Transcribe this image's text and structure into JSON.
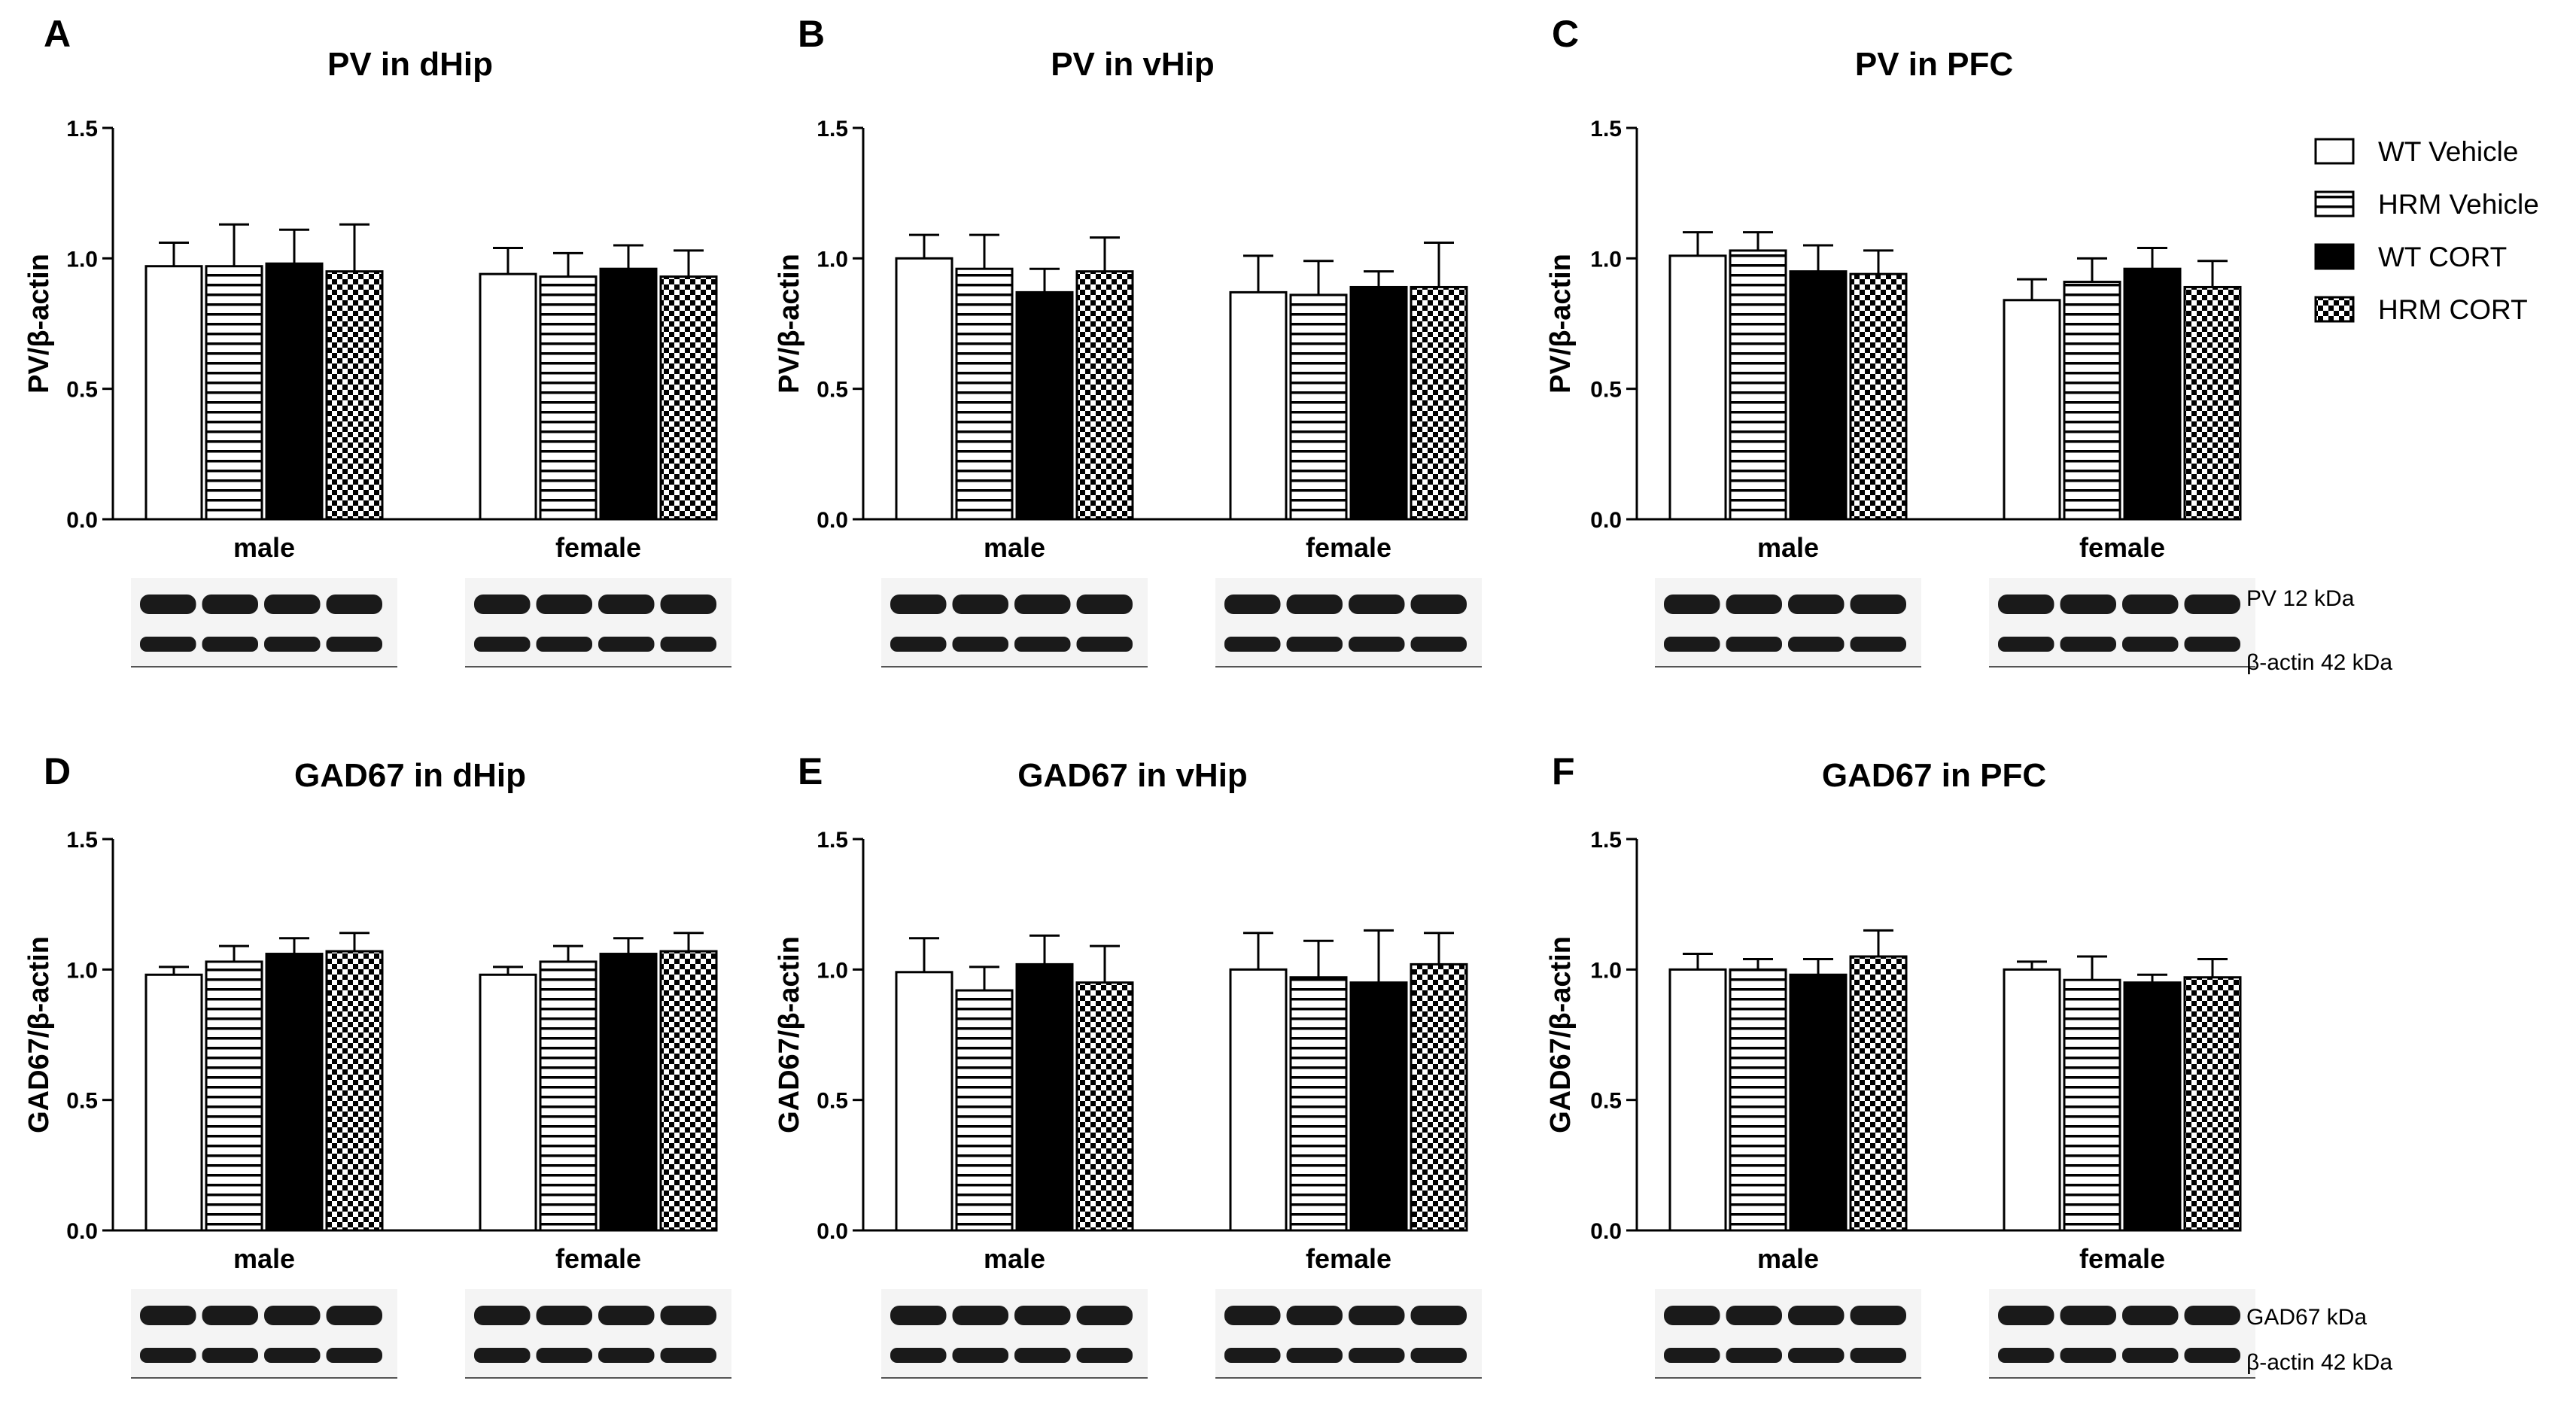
{
  "legend": [
    {
      "label": "WT Vehicle",
      "pattern": "white"
    },
    {
      "label": "HRM Vehicle",
      "pattern": "hstripe"
    },
    {
      "label": "WT CORT",
      "pattern": "black"
    },
    {
      "label": "HRM CORT",
      "pattern": "checker"
    }
  ],
  "blot_labels_top": [
    "PV 12 kDa",
    "β-actin 42 kDa"
  ],
  "blot_labels_bottom": [
    "GAD67 kDa",
    "β-actin 42 kDa"
  ],
  "colors": {
    "bar_fill_dark": "#000000",
    "bar_fill_light": "#ffffff",
    "axis": "#000000",
    "blot_band": "#1a1a1a"
  },
  "chart_data": [
    {
      "panel": "A",
      "type": "bar",
      "title": "PV in dHip",
      "ylabel": "PV/β-actin",
      "ylim": [
        0,
        1.5
      ],
      "yticks": [
        "0.0",
        "0.5",
        "1.0",
        "1.5"
      ],
      "categories": [
        "male",
        "female"
      ],
      "series": [
        {
          "name": "WT Vehicle",
          "values": [
            0.97,
            0.94
          ],
          "errors": [
            0.09,
            0.1
          ]
        },
        {
          "name": "HRM Vehicle",
          "values": [
            0.97,
            0.93
          ],
          "errors": [
            0.16,
            0.09
          ]
        },
        {
          "name": "WT CORT",
          "values": [
            0.98,
            0.96
          ],
          "errors": [
            0.13,
            0.09
          ]
        },
        {
          "name": "HRM CORT",
          "values": [
            0.95,
            0.93
          ],
          "errors": [
            0.18,
            0.1
          ]
        }
      ]
    },
    {
      "panel": "B",
      "type": "bar",
      "title": "PV in vHip",
      "ylabel": "PV/β-actin",
      "ylim": [
        0,
        1.5
      ],
      "yticks": [
        "0.0",
        "0.5",
        "1.0",
        "1.5"
      ],
      "categories": [
        "male",
        "female"
      ],
      "series": [
        {
          "name": "WT Vehicle",
          "values": [
            1.0,
            0.87
          ],
          "errors": [
            0.09,
            0.14
          ]
        },
        {
          "name": "HRM Vehicle",
          "values": [
            0.96,
            0.86
          ],
          "errors": [
            0.13,
            0.13
          ]
        },
        {
          "name": "WT CORT",
          "values": [
            0.87,
            0.89
          ],
          "errors": [
            0.09,
            0.06
          ]
        },
        {
          "name": "HRM CORT",
          "values": [
            0.95,
            0.89
          ],
          "errors": [
            0.13,
            0.17
          ]
        }
      ]
    },
    {
      "panel": "C",
      "type": "bar",
      "title": "PV in PFC",
      "ylabel": "PV/β-actin",
      "ylim": [
        0,
        1.5
      ],
      "yticks": [
        "0.0",
        "0.5",
        "1.0",
        "1.5"
      ],
      "categories": [
        "male",
        "female"
      ],
      "series": [
        {
          "name": "WT Vehicle",
          "values": [
            1.01,
            0.84
          ],
          "errors": [
            0.09,
            0.08
          ]
        },
        {
          "name": "HRM Vehicle",
          "values": [
            1.03,
            0.91
          ],
          "errors": [
            0.07,
            0.09
          ]
        },
        {
          "name": "WT CORT",
          "values": [
            0.95,
            0.96
          ],
          "errors": [
            0.1,
            0.08
          ]
        },
        {
          "name": "HRM CORT",
          "values": [
            0.94,
            0.89
          ],
          "errors": [
            0.09,
            0.1
          ]
        }
      ]
    },
    {
      "panel": "D",
      "type": "bar",
      "title": "GAD67 in dHip",
      "ylabel": "GAD67/β-actin",
      "ylim": [
        0,
        1.5
      ],
      "yticks": [
        "0.0",
        "0.5",
        "1.0",
        "1.5"
      ],
      "categories": [
        "male",
        "female"
      ],
      "series": [
        {
          "name": "WT Vehicle",
          "values": [
            0.98,
            0.98
          ],
          "errors": [
            0.03,
            0.03
          ]
        },
        {
          "name": "HRM Vehicle",
          "values": [
            1.03,
            1.03
          ],
          "errors": [
            0.06,
            0.06
          ]
        },
        {
          "name": "WT CORT",
          "values": [
            1.06,
            1.06
          ],
          "errors": [
            0.06,
            0.06
          ]
        },
        {
          "name": "HRM CORT",
          "values": [
            1.07,
            1.07
          ],
          "errors": [
            0.07,
            0.07
          ]
        }
      ]
    },
    {
      "panel": "E",
      "type": "bar",
      "title": "GAD67 in vHip",
      "ylabel": "GAD67/β-actin",
      "ylim": [
        0,
        1.5
      ],
      "yticks": [
        "0.0",
        "0.5",
        "1.0",
        "1.5"
      ],
      "categories": [
        "male",
        "female"
      ],
      "series": [
        {
          "name": "WT Vehicle",
          "values": [
            0.99,
            1.0
          ],
          "errors": [
            0.13,
            0.14
          ]
        },
        {
          "name": "HRM Vehicle",
          "values": [
            0.92,
            0.97
          ],
          "errors": [
            0.09,
            0.14
          ]
        },
        {
          "name": "WT CORT",
          "values": [
            1.02,
            0.95
          ],
          "errors": [
            0.11,
            0.2
          ]
        },
        {
          "name": "HRM CORT",
          "values": [
            0.95,
            1.02
          ],
          "errors": [
            0.14,
            0.12
          ]
        }
      ]
    },
    {
      "panel": "F",
      "type": "bar",
      "title": "GAD67 in PFC",
      "ylabel": "GAD67/β-actin",
      "ylim": [
        0,
        1.5
      ],
      "yticks": [
        "0.0",
        "0.5",
        "1.0",
        "1.5"
      ],
      "categories": [
        "male",
        "female"
      ],
      "series": [
        {
          "name": "WT Vehicle",
          "values": [
            1.0,
            1.0
          ],
          "errors": [
            0.06,
            0.03
          ]
        },
        {
          "name": "HRM Vehicle",
          "values": [
            1.0,
            0.96
          ],
          "errors": [
            0.04,
            0.09
          ]
        },
        {
          "name": "WT CORT",
          "values": [
            0.98,
            0.95
          ],
          "errors": [
            0.06,
            0.03
          ]
        },
        {
          "name": "HRM CORT",
          "values": [
            1.05,
            0.97
          ],
          "errors": [
            0.1,
            0.07
          ]
        }
      ]
    }
  ]
}
